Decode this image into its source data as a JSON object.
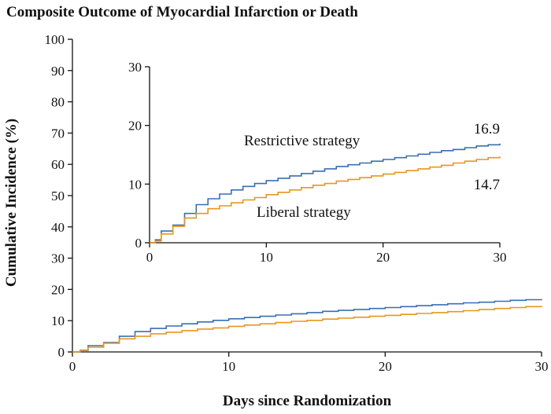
{
  "chart_data": {
    "type": "line",
    "title": "Composite Outcome of Myocardial Infarction or Death",
    "xlabel": "Days since Randomization",
    "ylabel": "Cumulative Incidence (%)",
    "xlim": [
      0,
      30
    ],
    "ylim": [
      0,
      100
    ],
    "x_ticks": [
      0,
      10,
      20,
      30
    ],
    "y_ticks": [
      0,
      10,
      20,
      30,
      40,
      50,
      60,
      70,
      80,
      90,
      100
    ],
    "grid": false,
    "series": [
      {
        "name": "Restrictive strategy",
        "color": "#3a6fb0",
        "step": true,
        "x": [
          0,
          0.5,
          1,
          2,
          3,
          4,
          5,
          6,
          7,
          8,
          9,
          10,
          11,
          12,
          13,
          14,
          15,
          16,
          17,
          18,
          19,
          20,
          21,
          22,
          23,
          24,
          25,
          26,
          27,
          28,
          29,
          30
        ],
        "y": [
          0,
          0.5,
          2.0,
          3.0,
          5.0,
          6.5,
          7.5,
          8.3,
          9.0,
          9.6,
          10.1,
          10.6,
          11.0,
          11.4,
          11.8,
          12.2,
          12.6,
          13.0,
          13.3,
          13.6,
          13.9,
          14.2,
          14.5,
          14.8,
          15.1,
          15.4,
          15.7,
          15.9,
          16.2,
          16.5,
          16.7,
          16.9
        ]
      },
      {
        "name": "Liberal strategy",
        "color": "#e8961e",
        "step": true,
        "x": [
          0,
          0.5,
          1,
          2,
          3,
          4,
          5,
          6,
          7,
          8,
          9,
          10,
          11,
          12,
          13,
          14,
          15,
          16,
          17,
          18,
          19,
          20,
          21,
          22,
          23,
          24,
          25,
          26,
          27,
          28,
          29,
          30
        ],
        "y": [
          0,
          0.3,
          1.5,
          2.8,
          4.2,
          5.0,
          5.8,
          6.3,
          6.8,
          7.3,
          7.7,
          8.2,
          8.6,
          9.0,
          9.4,
          9.8,
          10.1,
          10.5,
          10.8,
          11.1,
          11.4,
          11.7,
          12.0,
          12.3,
          12.6,
          12.9,
          13.2,
          13.6,
          13.9,
          14.2,
          14.5,
          14.7
        ]
      }
    ],
    "inset": {
      "xlim": [
        0,
        30
      ],
      "ylim": [
        0,
        30
      ],
      "x_ticks": [
        0,
        10,
        20,
        30
      ],
      "y_ticks": [
        0,
        10,
        20,
        30
      ],
      "series_labels": [
        "Restrictive strategy",
        "Liberal strategy"
      ],
      "end_labels": [
        "16.9",
        "14.7"
      ]
    }
  }
}
